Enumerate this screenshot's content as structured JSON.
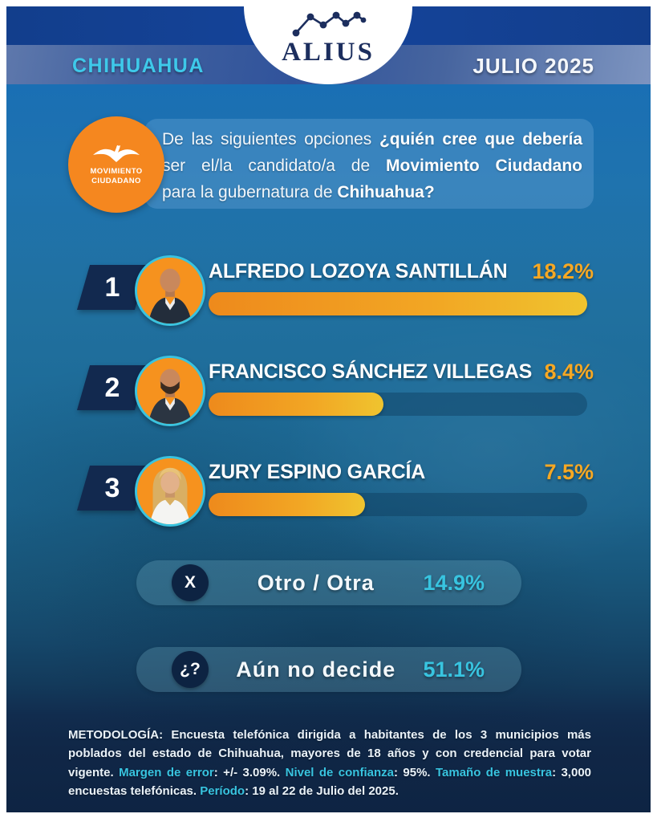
{
  "header": {
    "brand": "ALIUS",
    "location": "CHIHUAHUA",
    "date": "JULIO 2025",
    "location_color": "#3EC9EA"
  },
  "party_badge": {
    "line1": "MOVIMIENTO",
    "line2": "CIUDADANO",
    "color": "#F5871F"
  },
  "question": {
    "line1_pre": "De las siguientes opciones ",
    "line1_bold": "¿quién cree que debería",
    "line2_pre": "ser el/la candidato/a de ",
    "line2_bold": "Movimiento Ciudadano",
    "line3_pre": "para la gubernatura de ",
    "line3_bold": "Chihuahua?"
  },
  "chart_data": {
    "type": "bar",
    "orientation": "horizontal",
    "title": "De las siguientes opciones ¿quién cree que debería ser el/la candidato/a de Movimiento Ciudadano para la gubernatura de Chihuahua?",
    "categories": [
      "ALFREDO LOZOYA SANTILLÁN",
      "FRANCISCO SÁNCHEZ VILLEGAS",
      "ZURY ESPINO GARCÍA",
      "Otro / Otra",
      "Aún no decide"
    ],
    "values": [
      18.2,
      8.4,
      7.5,
      14.9,
      51.1
    ],
    "unit": "%",
    "bar_scale_max": 18.2,
    "bar_gradient": [
      "#EE8A1C",
      "#EFC42F"
    ],
    "pct_color": "#F7A823",
    "neutral_pct_color": "#38C4E0",
    "grid": false,
    "legend": false
  },
  "candidates": [
    {
      "rank": "1",
      "name": "ALFREDO LOZOYA SANTILLÁN",
      "pct_label": "18.2%",
      "value": 18.2
    },
    {
      "rank": "2",
      "name": "FRANCISCO SÁNCHEZ VILLEGAS",
      "pct_label": "8.4%",
      "value": 8.4
    },
    {
      "rank": "3",
      "name": "ZURY ESPINO GARCÍA",
      "pct_label": "7.5%",
      "value": 7.5
    }
  ],
  "others": [
    {
      "icon": "X",
      "label": "Otro / Otra",
      "pct_label": "14.9%"
    },
    {
      "icon": "¿?",
      "label": "Aún no decide",
      "pct_label": "51.1%"
    }
  ],
  "methodology": {
    "label": "METODOLOGÍA",
    "seg1": ": Encuesta telefónica dirigida a habitantes de los 3 municipios más poblados del estado de Chihuahua, mayores de 18 años y con credencial para votar vigente. ",
    "kw1": "Margen de error",
    "seg2": ": +/- 3.09%. ",
    "kw2": "Nivel de confianza",
    "seg3": ": 95%. ",
    "kw3": "Tamaño de muestra",
    "seg4": ": 3,000 encuestas telefónicas. ",
    "kw4": "Período",
    "seg5": ": 19 al 22 de Julio del 2025."
  }
}
